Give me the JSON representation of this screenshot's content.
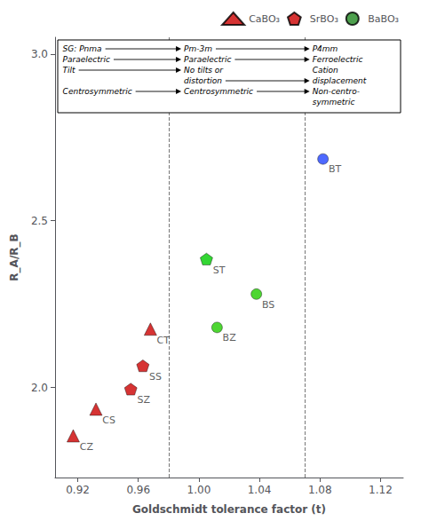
{
  "chart_data": {
    "type": "scatter",
    "xlabel": "Goldschmidt tolerance factor (t)",
    "ylabel": "R_A/R_B",
    "xlim": [
      0.905,
      1.135
    ],
    "ylim": [
      1.73,
      3.05
    ],
    "xticks": [
      0.92,
      0.96,
      {
        "value": 1.0,
        "label": "1.00"
      },
      1.04,
      1.08,
      1.12
    ],
    "yticks": [
      {
        "value": 2.0,
        "label": "2.0"
      },
      2.5,
      {
        "value": 3.0,
        "label": "3.0"
      }
    ],
    "grid": false,
    "legend": "upper right",
    "vlines": [
      0.985,
      1.072
    ],
    "series": [
      {
        "name": "CaBO₃",
        "marker": "triangle",
        "color": "#cc0000",
        "x": [
          0.917,
          0.932,
          0.968
        ],
        "values": [
          1.855,
          1.935,
          2.175
        ],
        "labels": [
          "CZ",
          "CS",
          "CT"
        ],
        "colors": [
          "#cc0000",
          "#cc0000",
          "#cc0000"
        ]
      },
      {
        "name": "SrBO₃",
        "marker": "pentagon",
        "color": "#cc0000",
        "x": [
          0.955,
          0.963,
          1.005
        ],
        "values": [
          1.995,
          2.065,
          2.385
        ],
        "labels": [
          "SZ",
          "SS",
          "ST"
        ],
        "colors": [
          "#cc0000",
          "#cc0000",
          "#00cc00"
        ]
      },
      {
        "name": "BaBO₃",
        "marker": "circle",
        "color": "#228822",
        "x": [
          1.012,
          1.038,
          1.082
        ],
        "values": [
          2.18,
          2.28,
          2.685
        ],
        "labels": [
          "BZ",
          "BS",
          "BT"
        ],
        "colors": [
          "#22cc00",
          "#22cc00",
          "#2244ff"
        ]
      }
    ],
    "annotations": [
      [
        [
          "SG: Pnma"
        ],
        [
          "Pm-3m"
        ],
        [
          "P4mm"
        ]
      ],
      [
        [
          "Paraelectric"
        ],
        [
          "Paraelectric"
        ],
        [
          "Ferroelectric"
        ]
      ],
      [
        [
          "Tilt"
        ],
        [
          "No tilts or",
          "distortion"
        ],
        [
          "Cation",
          "displacement"
        ]
      ],
      [
        [
          "Centrosymmetric"
        ],
        [
          "Centrosymmetric"
        ],
        [
          "Non-centro-",
          "symmetric"
        ]
      ]
    ]
  }
}
